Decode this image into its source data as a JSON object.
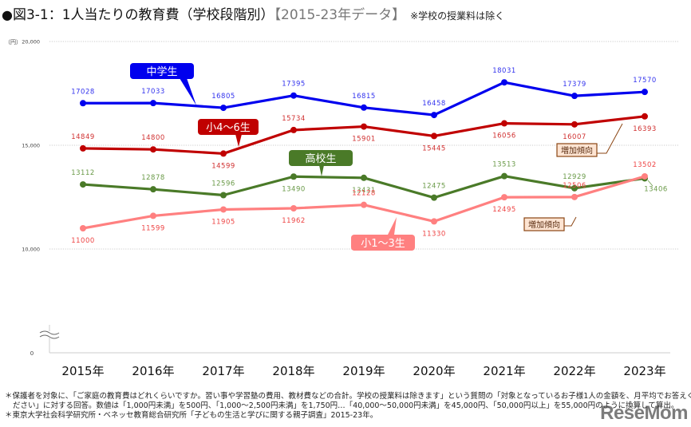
{
  "title": {
    "bullet": "●",
    "main": "図3-1：1人当たりの教育費（学校段階別）",
    "range": "【2015-23年データ】",
    "note": "※学校の授業料は除く"
  },
  "chart_data": {
    "type": "line",
    "title": "図3-1：1人当たりの教育費（学校段階別）",
    "subtitle": "【2015-23年データ】 ※学校の授業料は除く",
    "xlabel": "",
    "ylabel": "（円）",
    "ylim": [
      0,
      20000
    ],
    "y_axis_break": true,
    "y_ticks": [
      {
        "value": 20000,
        "label": "20,000"
      },
      {
        "value": 15000,
        "label": "15,000"
      },
      {
        "value": 10000,
        "label": "10,000"
      },
      {
        "value": 0,
        "label": "0"
      }
    ],
    "grid": true,
    "categories": [
      "2015年",
      "2016年",
      "2017年",
      "2018年",
      "2019年",
      "2020年",
      "2021年",
      "2022年",
      "2023年"
    ],
    "series": [
      {
        "name": "中学生",
        "color": "#0000ee",
        "label_color": "#3333ee",
        "values": [
          17028,
          17033,
          16805,
          17395,
          16815,
          16458,
          18031,
          17379,
          17570
        ],
        "label_pos": [
          "above",
          "above",
          "above",
          "above",
          "above",
          "above",
          "above",
          "above",
          "above"
        ]
      },
      {
        "name": "小4～6生",
        "color": "#c00000",
        "label_color": "#d03030",
        "values": [
          14849,
          14800,
          14599,
          15734,
          15901,
          15445,
          16056,
          16007,
          16393
        ],
        "label_pos": [
          "above",
          "above",
          "below",
          "above",
          "below",
          "below",
          "below",
          "below",
          "below"
        ]
      },
      {
        "name": "高校生",
        "color": "#4a7a28",
        "label_color": "#6a9a48",
        "values": [
          13112,
          12878,
          12596,
          13490,
          13431,
          12475,
          13513,
          12929,
          13406
        ],
        "label_pos": [
          "above",
          "above",
          "above",
          "below",
          "below",
          "above",
          "above",
          "above",
          "below"
        ]
      },
      {
        "name": "小1～3生",
        "color": "#ff8080",
        "label_color": "#ee4444",
        "values": [
          11000,
          11599,
          11905,
          11962,
          12128,
          11330,
          12495,
          12506,
          13502
        ],
        "label_pos": [
          "below",
          "below",
          "below",
          "below",
          "above",
          "below",
          "below",
          "above",
          "above"
        ]
      }
    ],
    "annotations": [
      {
        "text": "中学生",
        "series": "中学生"
      },
      {
        "text": "小4～6生",
        "series": "小4～6生"
      },
      {
        "text": "高校生",
        "series": "高校生"
      },
      {
        "text": "小1～3生",
        "series": "小1～3生"
      },
      {
        "text": "増加傾向",
        "series": "小4～6生"
      },
      {
        "text": "増加傾向",
        "series": "小1～3生"
      }
    ],
    "legend": "callouts-inline"
  },
  "unit_label": "（円）",
  "footnotes": [
    "＊保護者を対象に、「ご家庭の教育費はどれくらいですか。習い事や学習塾の費用、教材費などの合計。学校の授業料は除きます」という質問の「対象となっているお子様1人の金額を、月平均でお答えく",
    "ださい」に対する回答。数値は「1,000円未満」を500円、「1,000～2,500円未満」を1,750円…「40,000～50,000円未満」を45,000円、「50,000円以上」を55,000円のように換算して算出。",
    "＊東京大学社会科学研究所・ベネッセ教育総合研究所「子どもの生活と学びに関する親子調査」2015-23年。"
  ],
  "watermark": "ReseMom"
}
